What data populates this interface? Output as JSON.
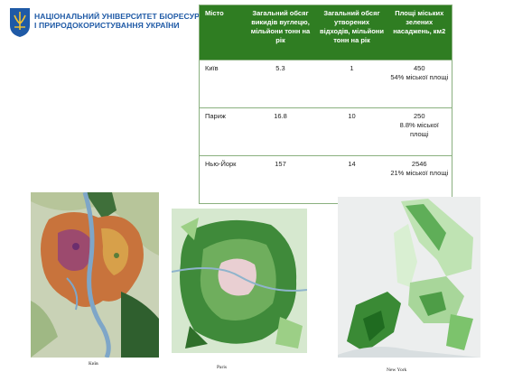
{
  "header": {
    "university_line1": "НАЦІОНАЛЬНИЙ УНІВЕРСИТЕТ БІОРЕСУРСІВ",
    "university_line2": "І ПРИРОДОКОРИСТУВАННЯ УКРАЇНИ"
  },
  "table": {
    "headers": [
      "Місто",
      "Загальний обсяг викидів вуглецю, мільйони тонн на рік",
      "Загальний обсяг утворених відходів, мільйони тонн на рік",
      "Площі міських зелених насаджень, км2"
    ],
    "rows": [
      {
        "city": "Київ",
        "carbon": "5.3",
        "waste": "1",
        "green_area": "450",
        "green_share": "54% міської площі"
      },
      {
        "city": "Париж",
        "carbon": "16.8",
        "waste": "10",
        "green_area": "250",
        "green_share": "8.8% міської площі"
      },
      {
        "city": "Нью-Йорк",
        "carbon": "157",
        "waste": "14",
        "green_area": "2546",
        "green_share": "21% міської площі"
      }
    ]
  },
  "maps": {
    "kyiv_caption": "Київ",
    "paris_caption": "Paris",
    "newyork_caption": "New York"
  },
  "colors": {
    "brand_blue": "#1f5aa6",
    "table_header_green": "#2f7d22"
  }
}
